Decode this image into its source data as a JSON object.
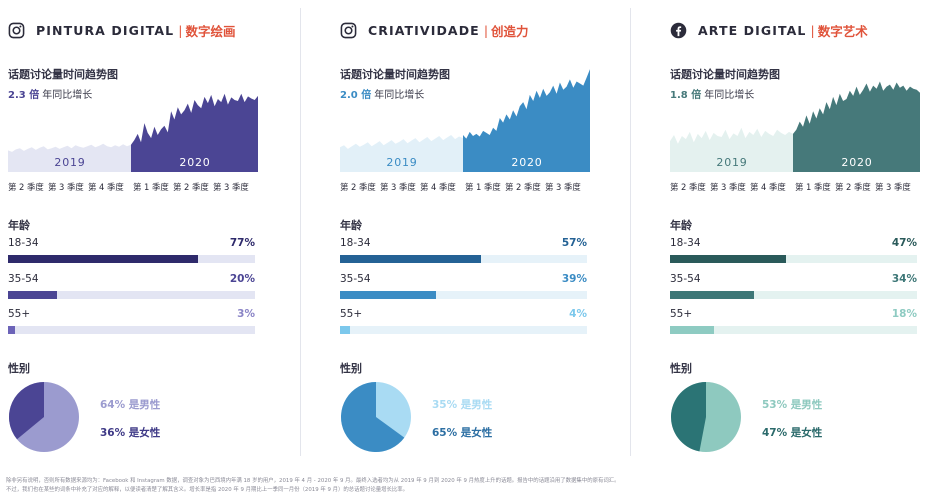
{
  "quarters_2019": [
    "第 2 季度",
    "第 3 季度",
    "第 4 季度"
  ],
  "quarters_2020": [
    "第 1 季度",
    "第 2 季度",
    "第 3 季度"
  ],
  "chart_data": [
    {
      "type": "area",
      "title": "话题讨论量时间趋势图",
      "label_prefix": "PINTURA DIGITAL",
      "series": [
        {
          "name": "2019",
          "values": [
            0.42,
            0.39,
            0.44,
            0.46,
            0.41,
            0.45,
            0.48,
            0.43,
            0.47,
            0.5,
            0.44,
            0.46,
            0.49,
            0.45,
            0.48,
            0.51,
            0.46,
            0.52,
            0.49,
            0.47,
            0.5,
            0.53,
            0.48,
            0.51,
            0.55,
            0.5,
            0.48,
            0.52,
            0.49,
            0.54,
            0.5,
            0.53
          ]
        },
        {
          "name": "2020",
          "values": [
            0.53,
            0.62,
            0.74,
            0.58,
            0.95,
            0.76,
            0.66,
            0.88,
            0.72,
            0.83,
            0.9,
            0.77,
            1.18,
            1.02,
            1.26,
            1.12,
            1.2,
            1.33,
            1.15,
            1.4,
            1.3,
            1.24,
            1.46,
            1.34,
            1.5,
            1.28,
            1.42,
            1.36,
            1.52,
            1.31,
            1.45,
            1.4,
            1.38,
            1.52,
            1.36,
            1.47,
            1.43,
            1.4,
            1.48
          ]
        }
      ]
    },
    {
      "type": "area",
      "title": "话题讨论量时间趋势图",
      "label_prefix": "CRIATIVIDADE",
      "series": [
        {
          "name": "2019",
          "values": [
            0.48,
            0.52,
            0.45,
            0.5,
            0.55,
            0.49,
            0.53,
            0.58,
            0.5,
            0.55,
            0.6,
            0.52,
            0.57,
            0.62,
            0.55,
            0.59,
            0.64,
            0.56,
            0.61,
            0.66,
            0.58,
            0.63,
            0.68,
            0.6,
            0.65,
            0.7,
            0.62,
            0.67,
            0.72,
            0.64,
            0.69,
            0.66
          ]
        },
        {
          "name": "2020",
          "values": [
            0.72,
            0.65,
            0.78,
            0.7,
            0.74,
            0.69,
            0.8,
            0.76,
            0.72,
            0.86,
            0.8,
            1.05,
            0.96,
            1.12,
            1.02,
            1.2,
            1.08,
            1.28,
            1.36,
            1.22,
            1.5,
            1.38,
            1.58,
            1.44,
            1.62,
            1.48,
            1.55,
            1.68,
            1.52,
            1.74,
            1.6,
            1.66,
            1.8,
            1.64,
            1.76,
            1.72,
            1.68,
            1.84,
            2.0
          ]
        }
      ]
    },
    {
      "type": "area",
      "title": "话题讨论量时间趋势图",
      "label_prefix": "ARTE DIGITAL",
      "series": [
        {
          "name": "2019",
          "values": [
            0.6,
            0.72,
            0.55,
            0.7,
            0.64,
            0.78,
            0.58,
            0.74,
            0.66,
            0.8,
            0.62,
            0.76,
            0.7,
            0.68,
            0.82,
            0.64,
            0.75,
            0.7,
            0.86,
            0.66,
            0.78,
            0.72,
            0.84,
            0.68,
            0.8,
            0.74,
            0.7,
            0.82,
            0.76,
            0.72,
            0.78,
            0.74
          ]
        },
        {
          "name": "2020",
          "values": [
            0.74,
            0.82,
            0.98,
            0.88,
            1.1,
            0.94,
            1.18,
            1.04,
            1.24,
            1.12,
            1.36,
            1.22,
            1.46,
            1.3,
            1.52,
            1.38,
            1.42,
            1.58,
            1.48,
            1.66,
            1.5,
            1.6,
            1.72,
            1.56,
            1.68,
            1.62,
            1.76,
            1.58,
            1.66,
            1.7,
            1.6,
            1.74,
            1.64,
            1.68,
            1.58,
            1.66,
            1.62,
            1.6,
            1.54
          ]
        }
      ]
    }
  ],
  "panels": [
    {
      "icon": "instagram",
      "title_en": "PINTURA DIGITAL",
      "title_cn": "数字绘画",
      "chart_label": "话题讨论量时间趋势图",
      "growth_mult": "2.3 倍",
      "growth_text": "年同比增长",
      "year_a": "2019",
      "year_b": "2020",
      "age_label": "年龄",
      "ages": [
        {
          "range": "18-34",
          "pct": "77%",
          "value": 77
        },
        {
          "range": "35-54",
          "pct": "20%",
          "value": 20
        },
        {
          "range": "55+",
          "pct": "3%",
          "value": 3
        }
      ],
      "gender_label": "性别",
      "gender_male": "64% 是男性",
      "gender_female": "36% 是女性",
      "male_value": 64,
      "female_value": 36,
      "colors": {
        "bg19": "#e4e6f3",
        "main": "#4b4594",
        "label19": "#4b4594",
        "bars": [
          "#2e2a6b",
          "#4b4594",
          "#6c63b8"
        ],
        "track": "#e3e5f3",
        "pcts": [
          "#2e2a6b",
          "#4b4594",
          "#8a84c6"
        ],
        "male": "#9b9bcf",
        "female": "#4b4594",
        "male_text": "#9b9bcf",
        "female_text": "#3f3a87",
        "mult": "#4b4594"
      }
    },
    {
      "icon": "instagram",
      "title_en": "CRIATIVIDADE",
      "title_cn": "创造力",
      "chart_label": "话题讨论量时间趋势图",
      "growth_mult": "2.0 倍",
      "growth_text": "年同比增长",
      "year_a": "2019",
      "year_b": "2020",
      "age_label": "年龄",
      "ages": [
        {
          "range": "18-34",
          "pct": "57%",
          "value": 57
        },
        {
          "range": "35-54",
          "pct": "39%",
          "value": 39
        },
        {
          "range": "55+",
          "pct": "4%",
          "value": 4
        }
      ],
      "gender_label": "性别",
      "gender_male": "35% 是男性",
      "gender_female": "65% 是女性",
      "male_value": 35,
      "female_value": 65,
      "colors": {
        "bg19": "#e2f0f8",
        "main": "#3b8cc4",
        "label19": "#3b8cc4",
        "bars": [
          "#246295",
          "#3b8cc4",
          "#7cc8ec"
        ],
        "track": "#e6f2f9",
        "pcts": [
          "#246295",
          "#3b8cc4",
          "#7cc8ec"
        ],
        "male": "#a9dbf3",
        "female": "#3b8cc4",
        "male_text": "#a9dbf3",
        "female_text": "#2d6fa3",
        "mult": "#3b8cc4"
      }
    },
    {
      "icon": "facebook",
      "title_en": "ARTE DIGITAL",
      "title_cn": "数字艺术",
      "chart_label": "话题讨论量时间趋势图",
      "growth_mult": "1.8 倍",
      "growth_text": "年同比增长",
      "year_a": "2019",
      "year_b": "2020",
      "age_label": "年龄",
      "ages": [
        {
          "range": "18-34",
          "pct": "47%",
          "value": 47
        },
        {
          "range": "35-54",
          "pct": "34%",
          "value": 34
        },
        {
          "range": "55+",
          "pct": "18%",
          "value": 18
        }
      ],
      "gender_label": "性别",
      "gender_male": "53% 是男性",
      "gender_female": "47% 是女性",
      "male_value": 53,
      "female_value": 47,
      "colors": {
        "bg19": "#e4f1ef",
        "main": "#46797a",
        "label19": "#46797a",
        "bars": [
          "#2a5a5a",
          "#3d7777",
          "#8ecbc2"
        ],
        "track": "#e4f2f0",
        "pcts": [
          "#2a5a5a",
          "#3d7777",
          "#8ecbc2"
        ],
        "male": "#8ec9bf",
        "female": "#2b7475",
        "male_text": "#8ec9bf",
        "female_text": "#2b6a6b",
        "mult": "#46797a"
      }
    }
  ],
  "footnote_line1": "除非另有说明，否则所有数据来源均为：Facebook 和 Instagram 数据，调查对象为巴西境内年满 18 岁的用户，2019 年 4 月 - 2020 年 9 月。最终入选者均为从 2019 年 9 月到 2020 年 9 月热度上升的话题。报告中的话题沿用了数据集中的原有词汇。",
  "footnote_line2": "不过，我们也在某些的词条中补充了对应的解释，以便读者清楚了解其含义。增长率是指 2020 年 9 月期比上一季同一月份（2019 年 9 月）的总话题讨论量增长比率。"
}
